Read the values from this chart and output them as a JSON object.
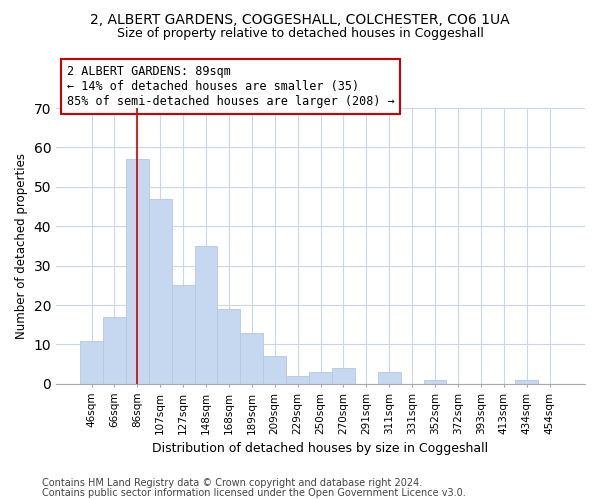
{
  "title_line1": "2, ALBERT GARDENS, COGGESHALL, COLCHESTER, CO6 1UA",
  "title_line2": "Size of property relative to detached houses in Coggeshall",
  "xlabel": "Distribution of detached houses by size in Coggeshall",
  "ylabel": "Number of detached properties",
  "bar_color": "#c5d8f0",
  "bar_edge_color": "#b0c8e8",
  "categories": [
    "46sqm",
    "66sqm",
    "86sqm",
    "107sqm",
    "127sqm",
    "148sqm",
    "168sqm",
    "189sqm",
    "209sqm",
    "229sqm",
    "250sqm",
    "270sqm",
    "291sqm",
    "311sqm",
    "331sqm",
    "352sqm",
    "372sqm",
    "393sqm",
    "413sqm",
    "434sqm",
    "454sqm"
  ],
  "values": [
    11,
    17,
    57,
    47,
    25,
    35,
    19,
    13,
    7,
    2,
    3,
    4,
    0,
    3,
    0,
    1,
    0,
    0,
    0,
    1,
    0
  ],
  "ylim": [
    0,
    70
  ],
  "yticks": [
    0,
    10,
    20,
    30,
    40,
    50,
    60,
    70
  ],
  "annotation_box_text": "2 ALBERT GARDENS: 89sqm\n← 14% of detached houses are smaller (35)\n85% of semi-detached houses are larger (208) →",
  "vline_x_index": 2,
  "vline_color": "#cc0000",
  "footer_line1": "Contains HM Land Registry data © Crown copyright and database right 2024.",
  "footer_line2": "Contains public sector information licensed under the Open Government Licence v3.0.",
  "background_color": "#ffffff",
  "grid_color": "#c8d8e8"
}
